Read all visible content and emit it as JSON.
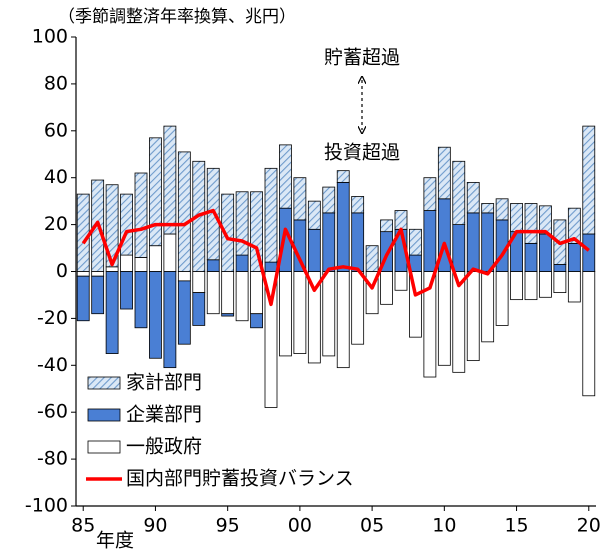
{
  "chart_data": {
    "type": "bar",
    "stacked": true,
    "subtitle": "（季節調整済年率換算、兆円）",
    "x_label": "年度",
    "annotations": [
      "貯蓄超過",
      "投資超過"
    ],
    "categories": [
      "85",
      null,
      null,
      null,
      null,
      "90",
      null,
      null,
      null,
      null,
      "95",
      null,
      null,
      null,
      null,
      "00",
      null,
      null,
      null,
      null,
      "05",
      null,
      null,
      null,
      null,
      "10",
      null,
      null,
      null,
      null,
      "15",
      null,
      null,
      null,
      null,
      "20"
    ],
    "series": [
      {
        "name": "家計部門",
        "color": "#a9c8e8",
        "pattern": "hatch",
        "values": [
          33,
          39,
          35,
          26,
          36,
          46,
          46,
          51,
          47,
          39,
          33,
          27,
          34,
          40,
          27,
          18,
          12,
          11,
          5,
          7,
          11,
          5,
          8,
          11,
          14,
          22,
          27,
          13,
          4,
          9,
          12,
          17,
          12,
          19,
          15,
          46
        ]
      },
      {
        "name": "企業部門",
        "color": "#4a7fd4",
        "values": [
          -19,
          -16,
          -35,
          -16,
          -24,
          -37,
          -41,
          -27,
          -14,
          5,
          -1,
          7,
          -6,
          4,
          27,
          22,
          18,
          25,
          38,
          25,
          0,
          17,
          18,
          7,
          26,
          31,
          20,
          25,
          25,
          22,
          17,
          12,
          16,
          3,
          12,
          16
        ]
      },
      {
        "name": "一般政府",
        "color": "#ffffff",
        "values": [
          -2,
          -2,
          2,
          7,
          6,
          11,
          16,
          -4,
          -9,
          -18,
          -18,
          -21,
          -18,
          -58,
          -36,
          -35,
          -39,
          -36,
          -41,
          -31,
          -18,
          -14,
          -8,
          -28,
          -45,
          -40,
          -43,
          -38,
          -30,
          -23,
          -12,
          -12,
          -11,
          -9,
          -13,
          -53
        ]
      },
      {
        "name": "国内部門貯蓄投資バランス",
        "color": "#ff0000",
        "type": "line",
        "values": [
          12,
          21,
          3,
          17,
          18,
          20,
          20,
          20,
          24,
          26,
          14,
          13,
          10,
          -14,
          18,
          5,
          -8,
          1,
          2,
          1,
          -7,
          7,
          18,
          -10,
          -7,
          12,
          -6,
          1,
          -1,
          7,
          17,
          17,
          17,
          12,
          14,
          9
        ]
      }
    ],
    "ylim": [
      -100,
      100
    ],
    "yticks": [
      -100,
      -80,
      -60,
      -40,
      -20,
      0,
      20,
      40,
      60,
      80,
      100
    ],
    "legend": "lower left"
  }
}
